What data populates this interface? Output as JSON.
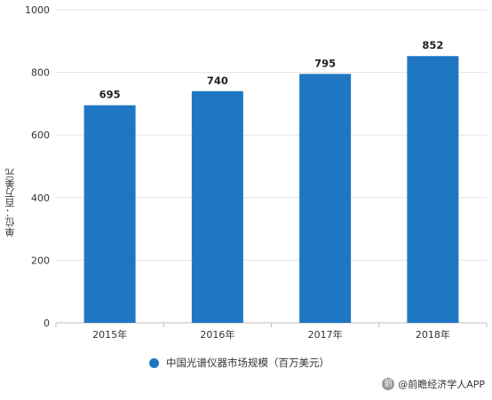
{
  "chart_data": {
    "type": "bar",
    "categories": [
      "2015年",
      "2016年",
      "2017年",
      "2018年"
    ],
    "series": [
      {
        "name": "中国光谱仪器市场规模（百万美元）",
        "values": [
          695,
          740,
          795,
          852
        ]
      }
    ],
    "ylabel": "单位：百万美元",
    "xlabel": "",
    "ylim": [
      0,
      1000
    ],
    "yticks": [
      0,
      200,
      400,
      600,
      800,
      1000
    ],
    "grid": true,
    "legend": "bottom-center",
    "bar_color": "#1f77c3"
  },
  "source": {
    "logo_text": "前",
    "text": "@前瞻经济学人APP"
  }
}
